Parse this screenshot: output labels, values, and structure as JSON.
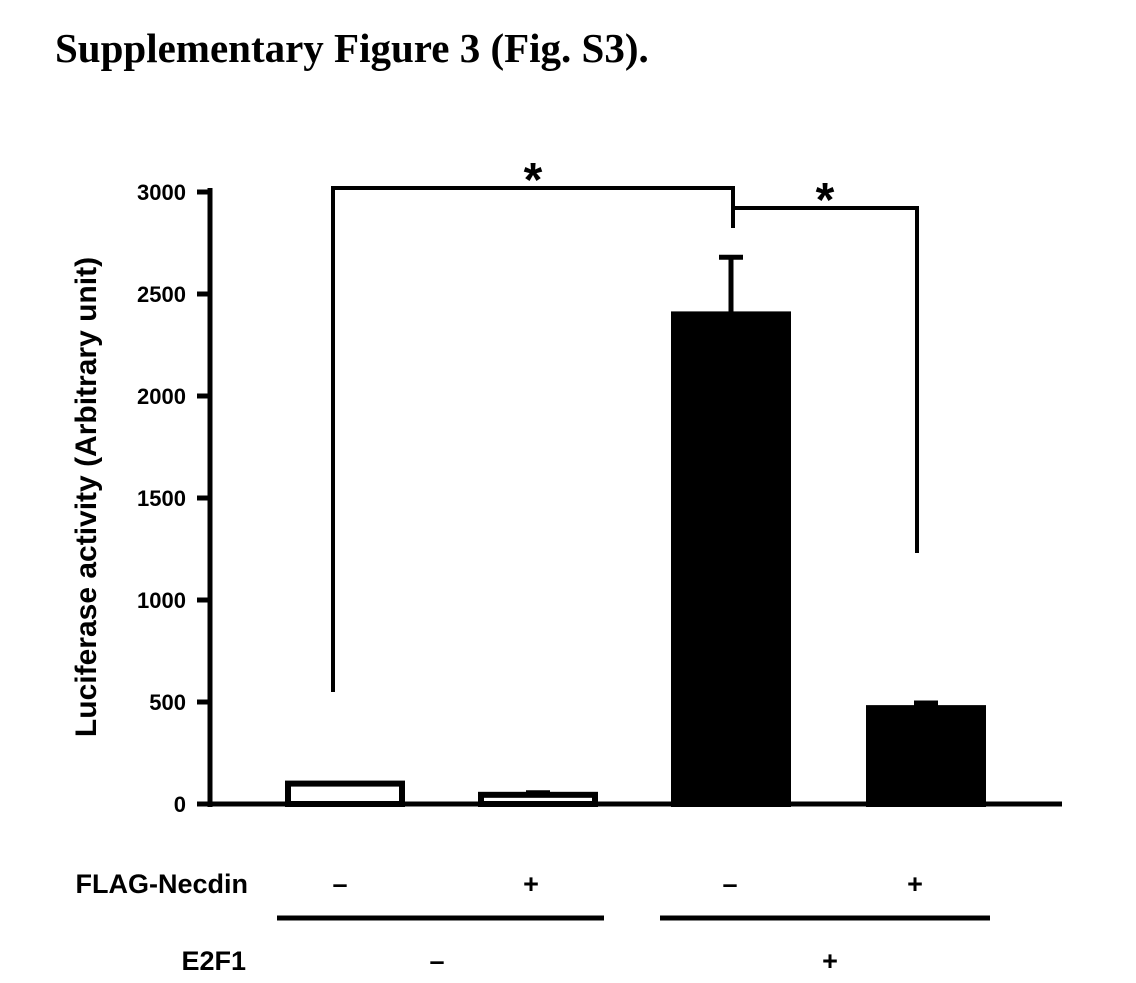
{
  "page_title": "Supplementary Figure 3 (Fig. S3).",
  "chart_data": {
    "type": "bar",
    "title": "",
    "xlabel": "",
    "ylabel": "Luciferase activity (Arbitrary unit)",
    "ylim": [
      0,
      3000
    ],
    "yticks": [
      0,
      500,
      1000,
      1500,
      2000,
      2500,
      3000
    ],
    "ytick_labels": [
      "0",
      "500",
      "1000",
      "1500",
      "2000",
      "2500",
      "3000"
    ],
    "categories": [
      "E2F1 − / FLAG-Necdin −",
      "E2F1 − / FLAG-Necdin +",
      "E2F1 + / FLAG-Necdin −",
      "E2F1 + / FLAG-Necdin +"
    ],
    "values": [
      100,
      45,
      2400,
      470
    ],
    "error": [
      0,
      10,
      280,
      25
    ],
    "bar_fill": [
      "#ffffff",
      "#ffffff",
      "#000000",
      "#000000"
    ],
    "grid": false,
    "significance": [
      {
        "from": 0,
        "to": 2,
        "label": "*"
      },
      {
        "from": 2,
        "to": 3,
        "label": "*"
      }
    ],
    "condition_rows": [
      {
        "label": "FLAG-Necdin",
        "signs": [
          "–",
          "+",
          "–",
          "+"
        ]
      },
      {
        "label": "E2F1",
        "signs": [
          "–",
          "+"
        ]
      }
    ]
  }
}
